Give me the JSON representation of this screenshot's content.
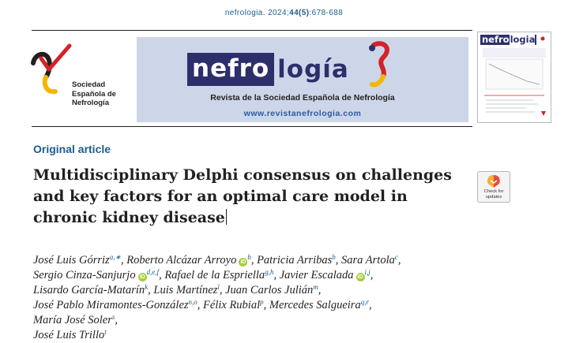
{
  "journal": {
    "name": "nefrologia",
    "year_volume": "2024;",
    "volume_issue": "44(5)",
    "pages": ":678-688"
  },
  "society": {
    "line1": "Sociedad",
    "line2": "Española de",
    "line3": "Nefrología"
  },
  "banner": {
    "logo_left": "nefro",
    "logo_right": "logía",
    "subtitle": "Revista de la Sociedad Española de Nefrología",
    "url": "www.revistanefrologia.com"
  },
  "cover": {
    "brand_left": "nefro",
    "brand_right": "logia"
  },
  "article_type": "Original article",
  "title": "Multidisciplinary Delphi consensus on challenges and key factors for an optimal care model in chronic kidney disease",
  "crossmark": {
    "label_line1": "Check for",
    "label_line2": "updates"
  },
  "orcid_glyph": "iD",
  "authors": [
    {
      "name": "José Luis Górriz",
      "aff": "a,∗",
      "orcid": false
    },
    {
      "name": "Roberto Alcázar Arroyo",
      "aff": "b",
      "orcid": true
    },
    {
      "name": "Patricia Arribas",
      "aff": "b",
      "orcid": false
    },
    {
      "name": "Sara Artola",
      "aff": "c",
      "orcid": false
    },
    {
      "name": "Sergio Cinza-Sanjurjo",
      "aff": "d,e,f",
      "orcid": true
    },
    {
      "name": "Rafael de la Espriella",
      "aff": "g,h",
      "orcid": false
    },
    {
      "name": "Javier Escalada",
      "aff": "i,j",
      "orcid": true
    },
    {
      "name": "Lisardo García-Matarín",
      "aff": "k",
      "orcid": false
    },
    {
      "name": "Luis Martínez",
      "aff": "l",
      "orcid": false
    },
    {
      "name": "Juan Carlos Julián",
      "aff": "m",
      "orcid": false
    },
    {
      "name": "José Pablo Miramontes-González",
      "aff": "n,o",
      "orcid": false
    },
    {
      "name": "Félix Rubial",
      "aff": "p",
      "orcid": false
    },
    {
      "name": "Mercedes Salgueira",
      "aff": "q,r",
      "orcid": false
    },
    {
      "name": "María José Soler",
      "aff": "s",
      "orcid": false
    },
    {
      "name": "José Luis Trillo",
      "aff": "t",
      "orcid": false
    }
  ]
}
